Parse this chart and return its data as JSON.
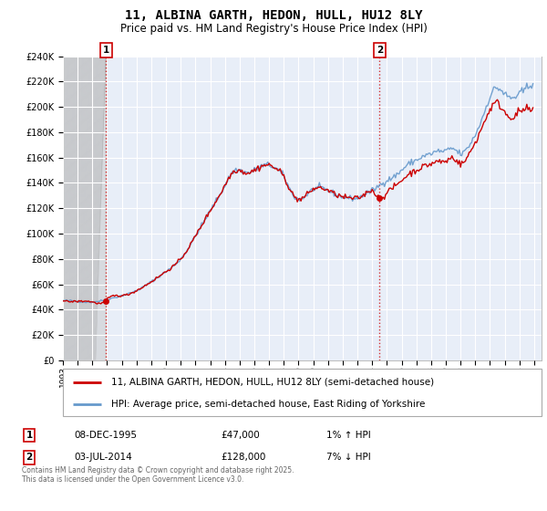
{
  "title": "11, ALBINA GARTH, HEDON, HULL, HU12 8LY",
  "subtitle": "Price paid vs. HM Land Registry's House Price Index (HPI)",
  "ylabel_ticks": [
    "£0",
    "£20K",
    "£40K",
    "£60K",
    "£80K",
    "£100K",
    "£120K",
    "£140K",
    "£160K",
    "£180K",
    "£200K",
    "£220K",
    "£240K"
  ],
  "ylim": [
    0,
    240000
  ],
  "ytick_vals": [
    0,
    20000,
    40000,
    60000,
    80000,
    100000,
    120000,
    140000,
    160000,
    180000,
    200000,
    220000,
    240000
  ],
  "xlim_start": 1993.0,
  "xlim_end": 2025.5,
  "sale1_x": 1995.92,
  "sale1_y": 47000,
  "sale1_label": "1",
  "sale1_date": "08-DEC-1995",
  "sale1_price": "£47,000",
  "sale1_hpi": "1% ↑ HPI",
  "sale2_x": 2014.5,
  "sale2_y": 128000,
  "sale2_label": "2",
  "sale2_date": "03-JUL-2014",
  "sale2_price": "£128,000",
  "sale2_hpi": "7% ↓ HPI",
  "property_label": "11, ALBINA GARTH, HEDON, HULL, HU12 8LY (semi-detached house)",
  "hpi_label": "HPI: Average price, semi-detached house, East Riding of Yorkshire",
  "line_color_property": "#cc0000",
  "line_color_hpi": "#6699cc",
  "marker_color": "#cc0000",
  "annotation_box_color": "#cc0000",
  "dashed_line_color": "#cc0000",
  "background_plot_color": "#e8eef8",
  "hatch_area_color": "#cccccc",
  "copyright_text": "Contains HM Land Registry data © Crown copyright and database right 2025.\nThis data is licensed under the Open Government Licence v3.0.",
  "grid_color": "#ffffff",
  "title_fontsize": 10,
  "subtitle_fontsize": 8.5,
  "axis_fontsize": 7,
  "legend_fontsize": 7.5,
  "annotation_fontsize": 8
}
